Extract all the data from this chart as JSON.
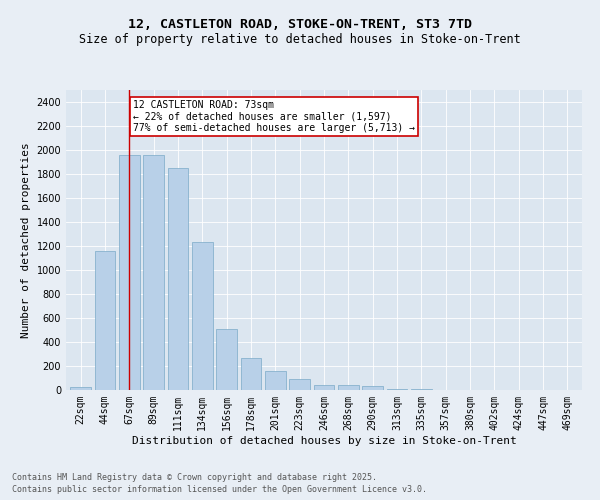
{
  "title_line1": "12, CASTLETON ROAD, STOKE-ON-TRENT, ST3 7TD",
  "title_line2": "Size of property relative to detached houses in Stoke-on-Trent",
  "xlabel": "Distribution of detached houses by size in Stoke-on-Trent",
  "ylabel": "Number of detached properties",
  "categories": [
    "22sqm",
    "44sqm",
    "67sqm",
    "89sqm",
    "111sqm",
    "134sqm",
    "156sqm",
    "178sqm",
    "201sqm",
    "223sqm",
    "246sqm",
    "268sqm",
    "290sqm",
    "313sqm",
    "335sqm",
    "357sqm",
    "380sqm",
    "402sqm",
    "424sqm",
    "447sqm",
    "469sqm"
  ],
  "values": [
    25,
    1160,
    1960,
    1960,
    1850,
    1230,
    510,
    265,
    160,
    95,
    45,
    40,
    32,
    10,
    5,
    3,
    2,
    1,
    1,
    0,
    0
  ],
  "bar_color": "#b8d0e8",
  "bar_edge_color": "#7aaac8",
  "vline_x_index": 2,
  "vline_color": "#cc0000",
  "annotation_text": "12 CASTLETON ROAD: 73sqm\n← 22% of detached houses are smaller (1,597)\n77% of semi-detached houses are larger (5,713) →",
  "annotation_box_color": "#ffffff",
  "annotation_box_edge": "#cc0000",
  "ylim": [
    0,
    2500
  ],
  "yticks": [
    0,
    200,
    400,
    600,
    800,
    1000,
    1200,
    1400,
    1600,
    1800,
    2000,
    2200,
    2400
  ],
  "background_color": "#e8eef5",
  "plot_bg_color": "#dce6f0",
  "footer_line1": "Contains HM Land Registry data © Crown copyright and database right 2025.",
  "footer_line2": "Contains public sector information licensed under the Open Government Licence v3.0.",
  "title_fontsize": 9.5,
  "subtitle_fontsize": 8.5,
  "axis_label_fontsize": 8,
  "tick_fontsize": 7,
  "annotation_fontsize": 7,
  "footer_fontsize": 6
}
